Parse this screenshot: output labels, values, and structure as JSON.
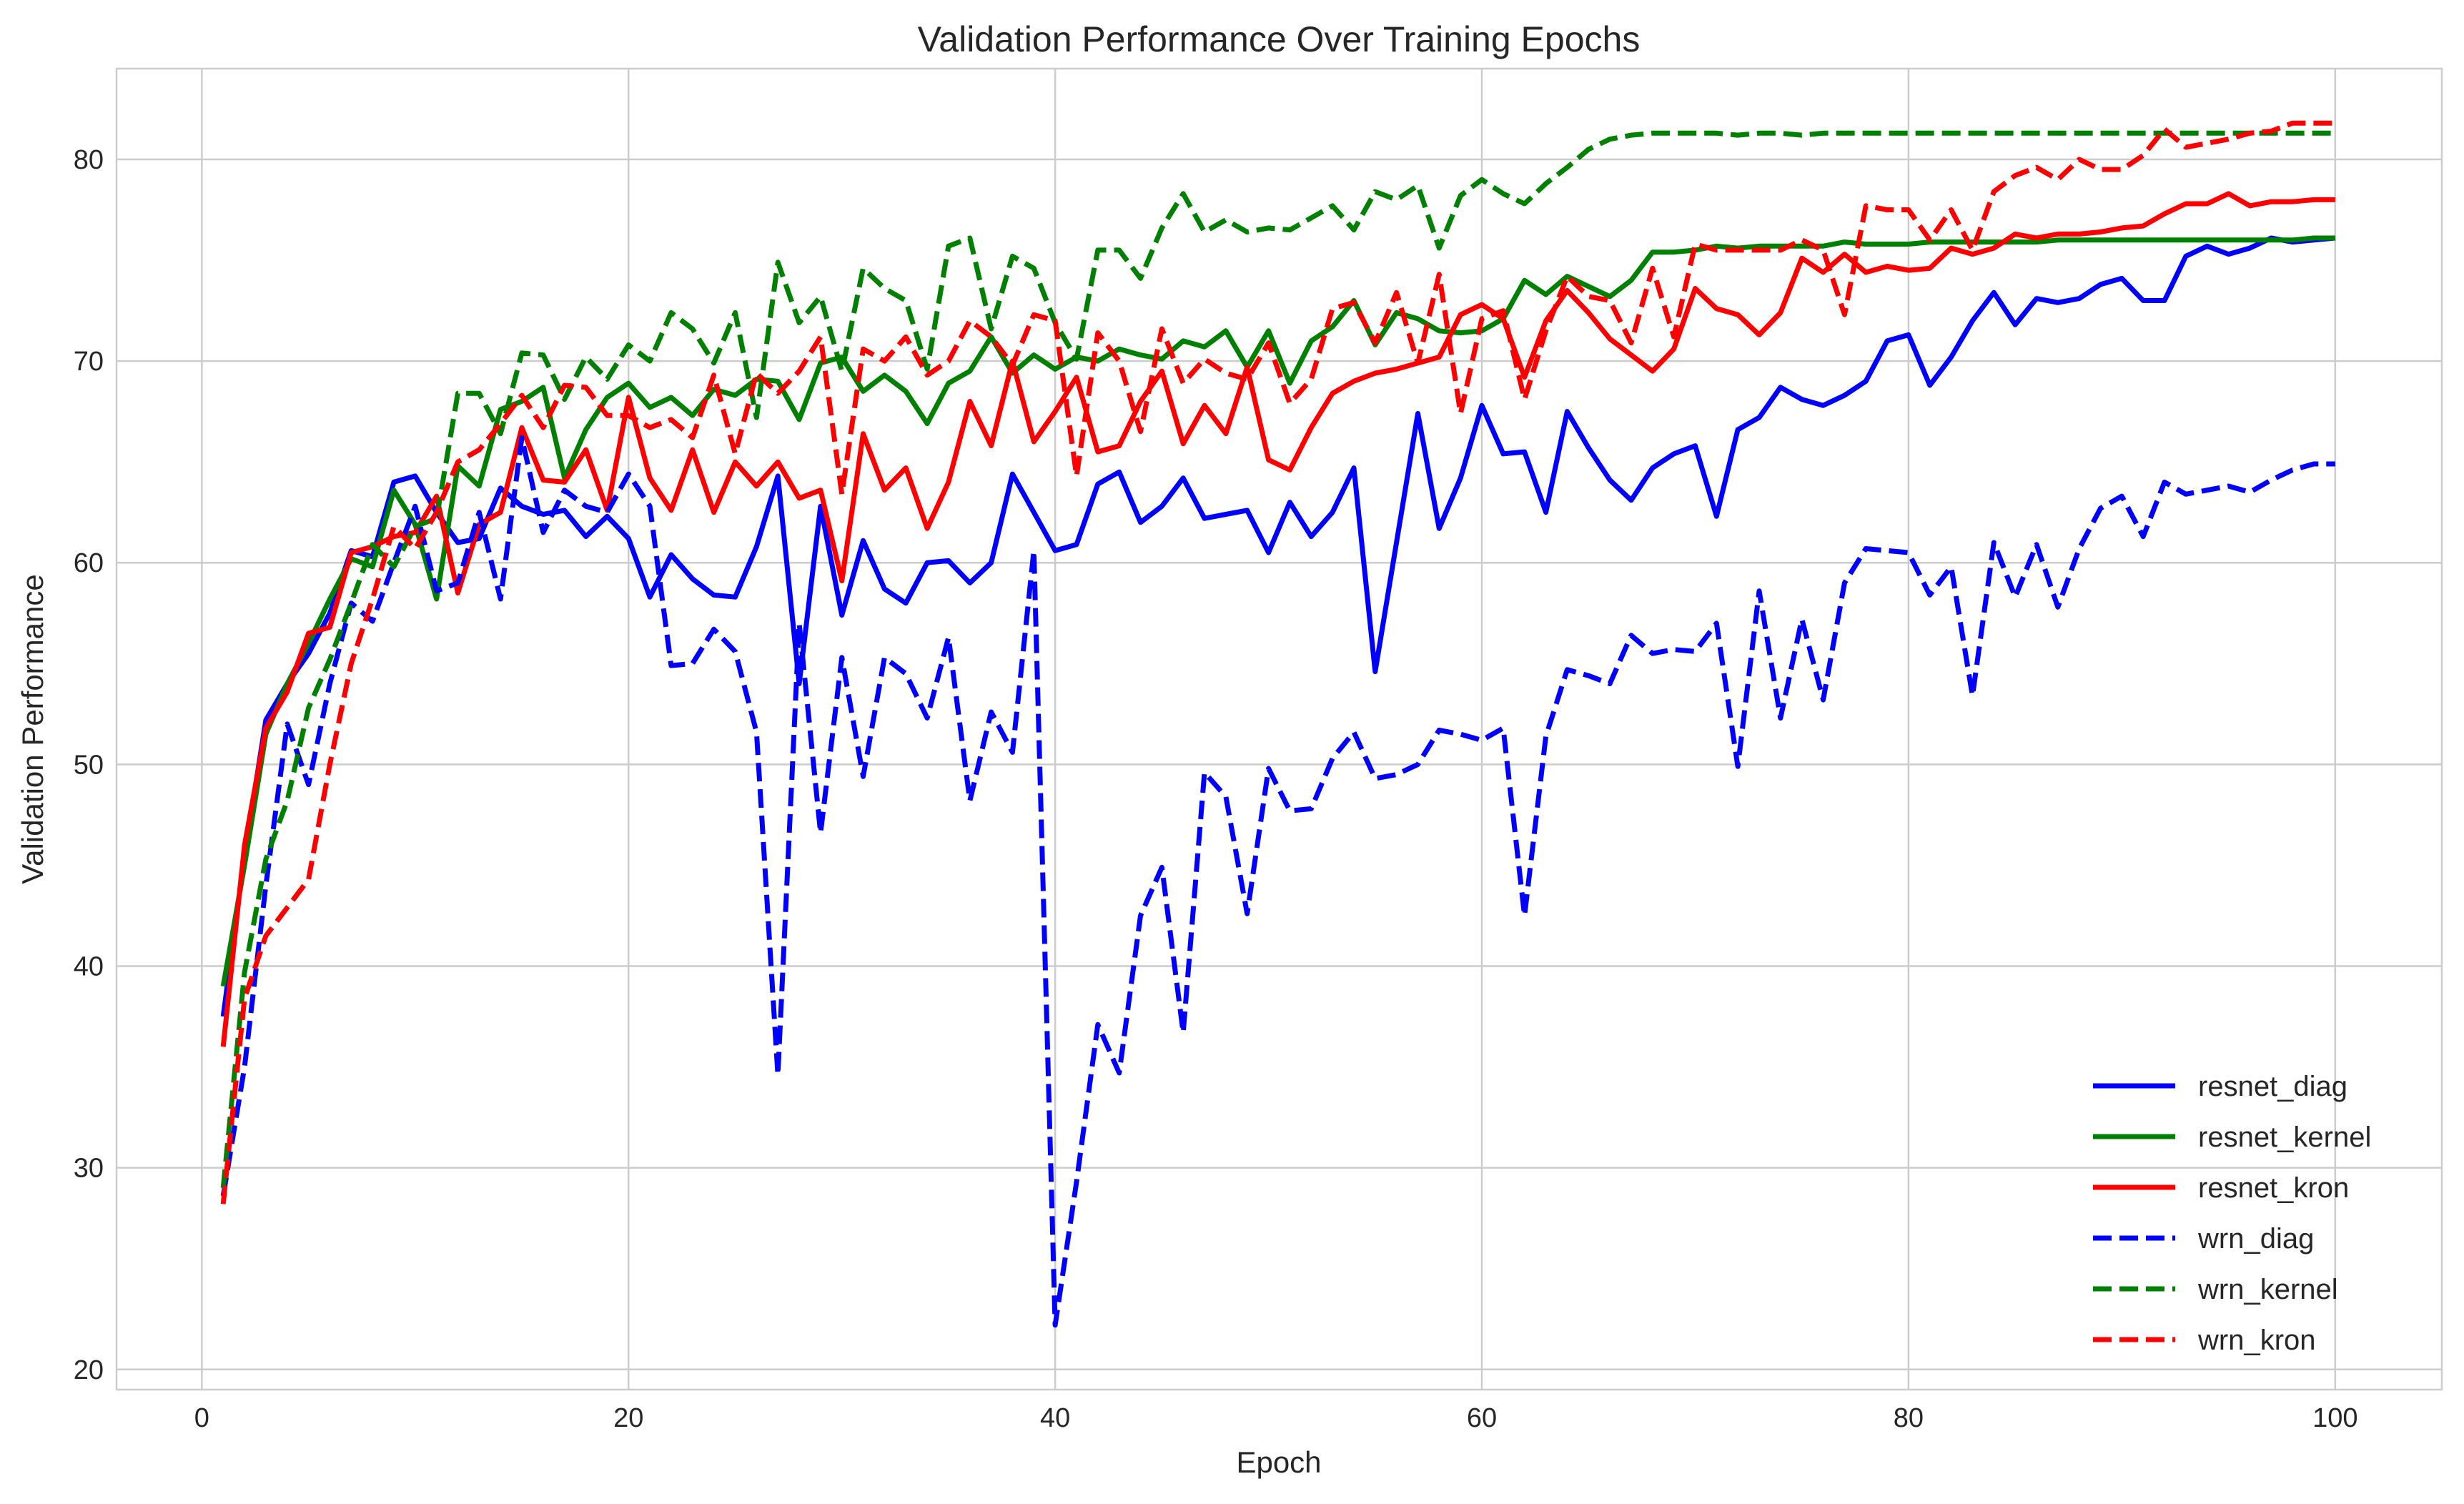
{
  "chart_data": {
    "type": "line",
    "title": "Validation Performance Over Training Epochs",
    "xlabel": "Epoch",
    "ylabel": "Validation Performance",
    "xlim": [
      -4,
      105
    ],
    "ylim": [
      19,
      84.5
    ],
    "xticks": [
      0,
      20,
      40,
      60,
      80,
      100
    ],
    "yticks": [
      20,
      30,
      40,
      50,
      60,
      70,
      80
    ],
    "grid": true,
    "legend_position": "bottom-right",
    "x": [
      1,
      2,
      3,
      4,
      5,
      6,
      7,
      8,
      9,
      10,
      11,
      12,
      13,
      14,
      15,
      16,
      17,
      18,
      19,
      20,
      21,
      22,
      23,
      24,
      25,
      26,
      27,
      28,
      29,
      30,
      31,
      32,
      33,
      34,
      35,
      36,
      37,
      38,
      39,
      40,
      41,
      42,
      43,
      44,
      45,
      46,
      47,
      48,
      49,
      50,
      51,
      52,
      53,
      54,
      55,
      56,
      57,
      58,
      59,
      60,
      61,
      62,
      63,
      64,
      65,
      66,
      67,
      68,
      69,
      70,
      71,
      72,
      73,
      74,
      75,
      76,
      77,
      78,
      79,
      80,
      81,
      82,
      83,
      84,
      85,
      86,
      87,
      88,
      89,
      90,
      91,
      92,
      93,
      94,
      95,
      96,
      97,
      98,
      99,
      100
    ],
    "series": [
      {
        "name": "resnet_diag",
        "color": "#0000ff",
        "style": "solid",
        "values": [
          37.5,
          45.5,
          52.2,
          54.0,
          55.5,
          57.5,
          60.6,
          60.3,
          64.0,
          64.3,
          62.5,
          61.0,
          61.2,
          63.7,
          62.8,
          62.4,
          62.6,
          61.3,
          62.3,
          61.2,
          58.3,
          60.4,
          59.2,
          58.4,
          58.3,
          60.8,
          64.3,
          54.0,
          62.8,
          57.4,
          61.1,
          58.7,
          58.0,
          60.0,
          60.1,
          59.0,
          60.0,
          64.4,
          62.5,
          60.6,
          60.9,
          63.9,
          64.5,
          62.0,
          62.8,
          64.2,
          62.2,
          62.4,
          62.6,
          60.5,
          63.0,
          61.3,
          62.5,
          64.7,
          54.6,
          61.0,
          67.4,
          61.7,
          64.2,
          67.8,
          65.4,
          65.5,
          62.5,
          67.5,
          65.7,
          64.1,
          63.1,
          64.7,
          65.4,
          65.8,
          62.3,
          66.6,
          67.2,
          68.7,
          68.1,
          67.8,
          68.3,
          69.0,
          71.0,
          71.3,
          68.8,
          70.2,
          72.0,
          73.4,
          71.8,
          73.1,
          72.9,
          73.1,
          73.8,
          74.1,
          73.0,
          73.0,
          75.2,
          75.7,
          75.3,
          75.6,
          76.1,
          75.9,
          76.0,
          76.1
        ]
      },
      {
        "name": "resnet_kernel",
        "color": "#008000",
        "style": "solid",
        "values": [
          39.0,
          45.0,
          51.5,
          54.0,
          56.0,
          58.2,
          60.2,
          59.8,
          63.6,
          61.9,
          58.2,
          64.8,
          63.8,
          67.6,
          68.0,
          68.7,
          64.2,
          66.6,
          68.2,
          68.9,
          67.7,
          68.2,
          67.3,
          68.6,
          68.3,
          69.1,
          69.0,
          67.1,
          69.9,
          70.2,
          68.5,
          69.3,
          68.5,
          66.9,
          68.9,
          69.5,
          71.2,
          69.4,
          70.3,
          69.6,
          70.2,
          70.0,
          70.6,
          70.3,
          70.1,
          71.0,
          70.7,
          71.5,
          69.7,
          71.5,
          68.9,
          71.0,
          71.7,
          73.0,
          70.8,
          72.4,
          72.1,
          71.5,
          71.4,
          71.5,
          72.1,
          74.0,
          73.3,
          74.2,
          73.7,
          73.2,
          74.0,
          75.4,
          75.4,
          75.5,
          75.7,
          75.6,
          75.7,
          75.7,
          75.7,
          75.7,
          75.9,
          75.8,
          75.8,
          75.8,
          75.9,
          75.9,
          75.9,
          75.9,
          75.9,
          75.9,
          76.0,
          76.0,
          76.0,
          76.0,
          76.0,
          76.0,
          76.0,
          76.0,
          76.0,
          76.0,
          76.0,
          76.0,
          76.1,
          76.1
        ]
      },
      {
        "name": "resnet_kron",
        "color": "#ff0000",
        "style": "solid",
        "values": [
          36.0,
          46.0,
          51.8,
          53.6,
          56.5,
          56.8,
          60.5,
          60.8,
          61.3,
          61.5,
          63.3,
          58.5,
          61.9,
          62.5,
          66.7,
          64.1,
          64.0,
          65.6,
          62.6,
          68.2,
          64.2,
          62.6,
          65.6,
          62.5,
          65.0,
          63.8,
          65.0,
          63.2,
          63.6,
          59.1,
          66.4,
          63.6,
          64.7,
          61.7,
          64.0,
          68.0,
          65.8,
          70.0,
          66.0,
          67.5,
          69.2,
          65.5,
          65.8,
          68.0,
          69.5,
          65.9,
          67.8,
          66.4,
          69.7,
          65.1,
          64.6,
          66.7,
          68.4,
          69.0,
          69.4,
          69.6,
          69.9,
          70.2,
          72.3,
          72.8,
          72.1,
          69.2,
          72.0,
          73.5,
          72.4,
          71.1,
          70.3,
          69.5,
          70.6,
          73.6,
          72.6,
          72.3,
          71.3,
          72.4,
          75.1,
          74.4,
          75.3,
          74.4,
          74.7,
          74.5,
          74.6,
          75.6,
          75.3,
          75.6,
          76.3,
          76.1,
          76.3,
          76.3,
          76.4,
          76.6,
          76.7,
          77.3,
          77.8,
          77.8,
          78.3,
          77.7,
          77.9,
          77.9,
          78.0,
          78.0
        ]
      },
      {
        "name": "wrn_diag",
        "color": "#0000ff",
        "style": "dashed",
        "values": [
          28.6,
          35.0,
          44.0,
          52.0,
          49.0,
          54.0,
          58.0,
          57.1,
          60.0,
          62.8,
          58.6,
          59.0,
          62.5,
          58.2,
          66.2,
          61.5,
          63.6,
          62.8,
          62.5,
          64.4,
          62.8,
          54.9,
          55.0,
          56.7,
          55.6,
          51.6,
          34.6,
          57.0,
          46.6,
          55.3,
          49.4,
          55.3,
          54.5,
          52.3,
          56.3,
          48.2,
          52.6,
          50.6,
          60.6,
          22.2,
          29.3,
          37.1,
          34.7,
          42.5,
          44.9,
          36.7,
          49.6,
          48.4,
          42.6,
          49.8,
          47.7,
          47.8,
          50.3,
          51.6,
          49.3,
          49.5,
          50.0,
          51.7,
          51.5,
          51.2,
          51.8,
          42.5,
          51.4,
          54.7,
          54.4,
          54.0,
          56.4,
          55.5,
          55.7,
          55.6,
          57.0,
          49.9,
          58.6,
          52.3,
          57.2,
          53.2,
          59.0,
          60.7,
          60.6,
          60.5,
          58.4,
          59.8,
          53.4,
          61.0,
          58.3,
          60.9,
          57.8,
          60.7,
          62.7,
          63.3,
          61.3,
          64.0,
          63.4,
          63.6,
          63.8,
          63.5,
          64.1,
          64.6,
          64.9,
          64.9
        ]
      },
      {
        "name": "wrn_kernel",
        "color": "#008000",
        "style": "dashed",
        "values": [
          29.0,
          39.7,
          45.3,
          48.2,
          52.8,
          55.2,
          58.0,
          60.9,
          59.8,
          61.8,
          62.2,
          68.4,
          68.4,
          66.4,
          70.4,
          70.3,
          68.1,
          70.2,
          69.1,
          70.8,
          70.0,
          72.4,
          71.6,
          69.9,
          72.4,
          67.2,
          74.9,
          71.9,
          73.2,
          69.5,
          74.6,
          73.6,
          73.0,
          69.6,
          75.7,
          76.1,
          71.6,
          75.2,
          74.6,
          71.9,
          70.1,
          75.5,
          75.5,
          74.1,
          76.6,
          78.3,
          76.4,
          77.0,
          76.4,
          76.6,
          76.5,
          77.1,
          77.7,
          76.5,
          78.4,
          78.0,
          78.7,
          75.6,
          78.2,
          79.0,
          78.3,
          77.8,
          78.8,
          79.6,
          80.5,
          81.0,
          81.2,
          81.3,
          81.3,
          81.3,
          81.3,
          81.2,
          81.3,
          81.3,
          81.2,
          81.3,
          81.3,
          81.3,
          81.3,
          81.3,
          81.3,
          81.3,
          81.3,
          81.3,
          81.3,
          81.3,
          81.3,
          81.3,
          81.3,
          81.3,
          81.3,
          81.3,
          81.3,
          81.3,
          81.3,
          81.3,
          81.3,
          81.3,
          81.3,
          81.3
        ]
      },
      {
        "name": "wrn_kron",
        "color": "#ff0000",
        "style": "dashed",
        "values": [
          28.2,
          38.4,
          41.5,
          42.9,
          44.3,
          50.0,
          55.0,
          58.2,
          61.8,
          60.7,
          62.5,
          65.0,
          65.6,
          66.9,
          68.3,
          66.7,
          68.8,
          68.7,
          67.3,
          67.3,
          66.7,
          67.1,
          66.2,
          69.3,
          65.4,
          69.4,
          68.4,
          69.5,
          71.2,
          63.4,
          70.6,
          70.0,
          71.2,
          69.3,
          70.0,
          72.0,
          71.2,
          69.8,
          72.3,
          72.0,
          64.3,
          71.4,
          70.0,
          66.5,
          71.6,
          68.9,
          70.1,
          69.4,
          69.1,
          70.9,
          67.9,
          69.1,
          72.6,
          72.9,
          70.9,
          73.4,
          69.9,
          74.3,
          67.4,
          72.1,
          72.5,
          68.1,
          71.5,
          74.2,
          73.2,
          73.0,
          70.9,
          74.6,
          71.2,
          75.8,
          75.5,
          75.5,
          75.5,
          75.5,
          76.0,
          75.5,
          72.3,
          77.7,
          77.5,
          77.5,
          76.0,
          77.5,
          75.5,
          78.4,
          79.2,
          79.6,
          79.0,
          80.0,
          79.5,
          79.5,
          80.2,
          81.5,
          80.6,
          80.8,
          81.0,
          81.3,
          81.4,
          81.8,
          81.8,
          81.8
        ]
      }
    ]
  }
}
